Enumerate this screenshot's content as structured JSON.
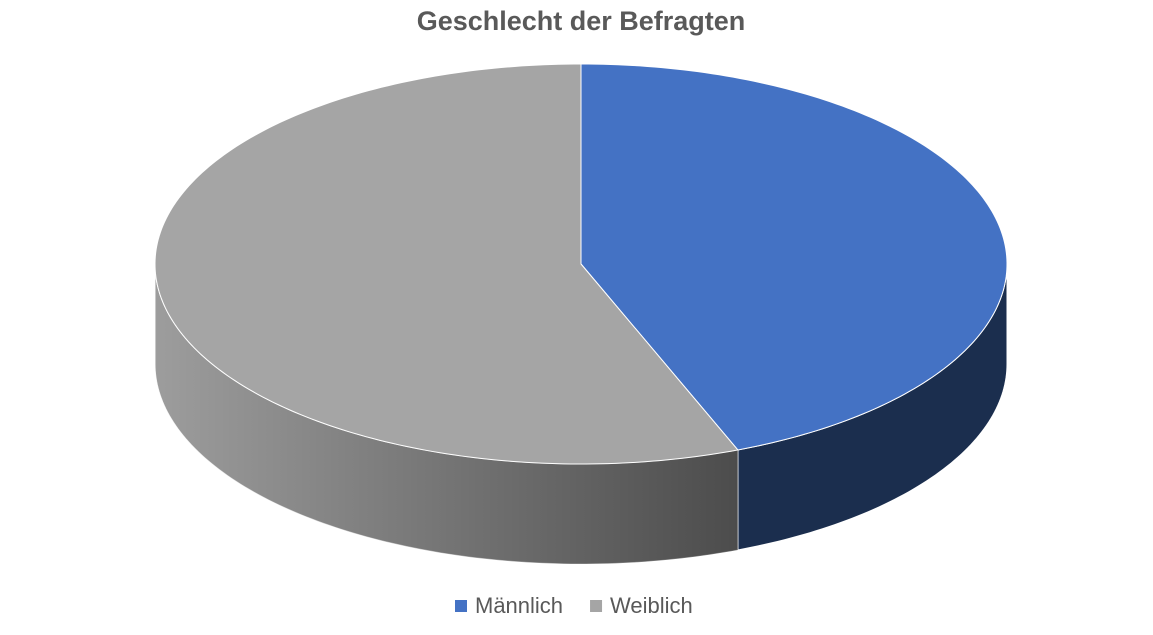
{
  "chart_data": {
    "type": "pie",
    "title": "Geschlecht der Befragten",
    "categories": [
      "Männlich",
      "Weiblich"
    ],
    "values": [
      44,
      56
    ],
    "colors": [
      "#4472c4",
      "#a5a5a5"
    ]
  }
}
